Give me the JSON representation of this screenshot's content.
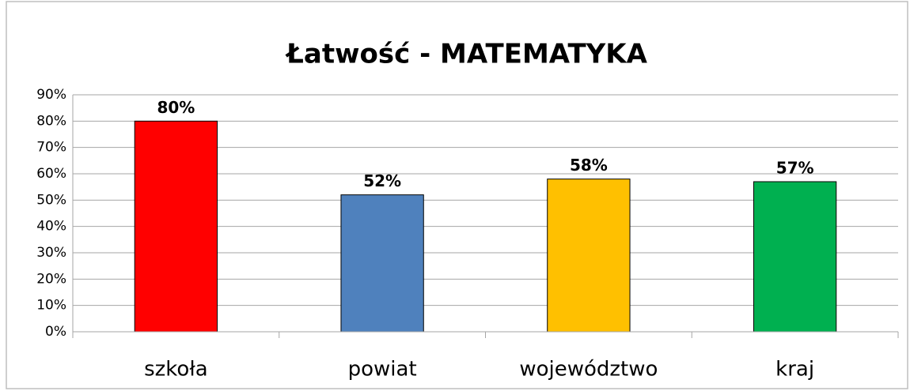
{
  "chart_data": {
    "type": "bar",
    "title": "Łatwość - MATEMATYKA",
    "categories": [
      "szkoła",
      "powiat",
      "województwo",
      "kraj"
    ],
    "values": [
      80,
      52,
      58,
      57
    ],
    "value_labels": [
      "80%",
      "52%",
      "58%",
      "57%"
    ],
    "colors": [
      "#ff0000",
      "#4f81bd",
      "#ffc000",
      "#00b050"
    ],
    "ylim": [
      0,
      90
    ],
    "yticks": [
      {
        "value": 0,
        "label": "0%"
      },
      {
        "value": 10,
        "label": "10%"
      },
      {
        "value": 20,
        "label": "20%"
      },
      {
        "value": 30,
        "label": "30%"
      },
      {
        "value": 40,
        "label": "40%"
      },
      {
        "value": 50,
        "label": "50%"
      },
      {
        "value": 60,
        "label": "60%"
      },
      {
        "value": 70,
        "label": "70%"
      },
      {
        "value": 80,
        "label": "80%"
      },
      {
        "value": 90,
        "label": "90%"
      }
    ],
    "grid": true
  }
}
